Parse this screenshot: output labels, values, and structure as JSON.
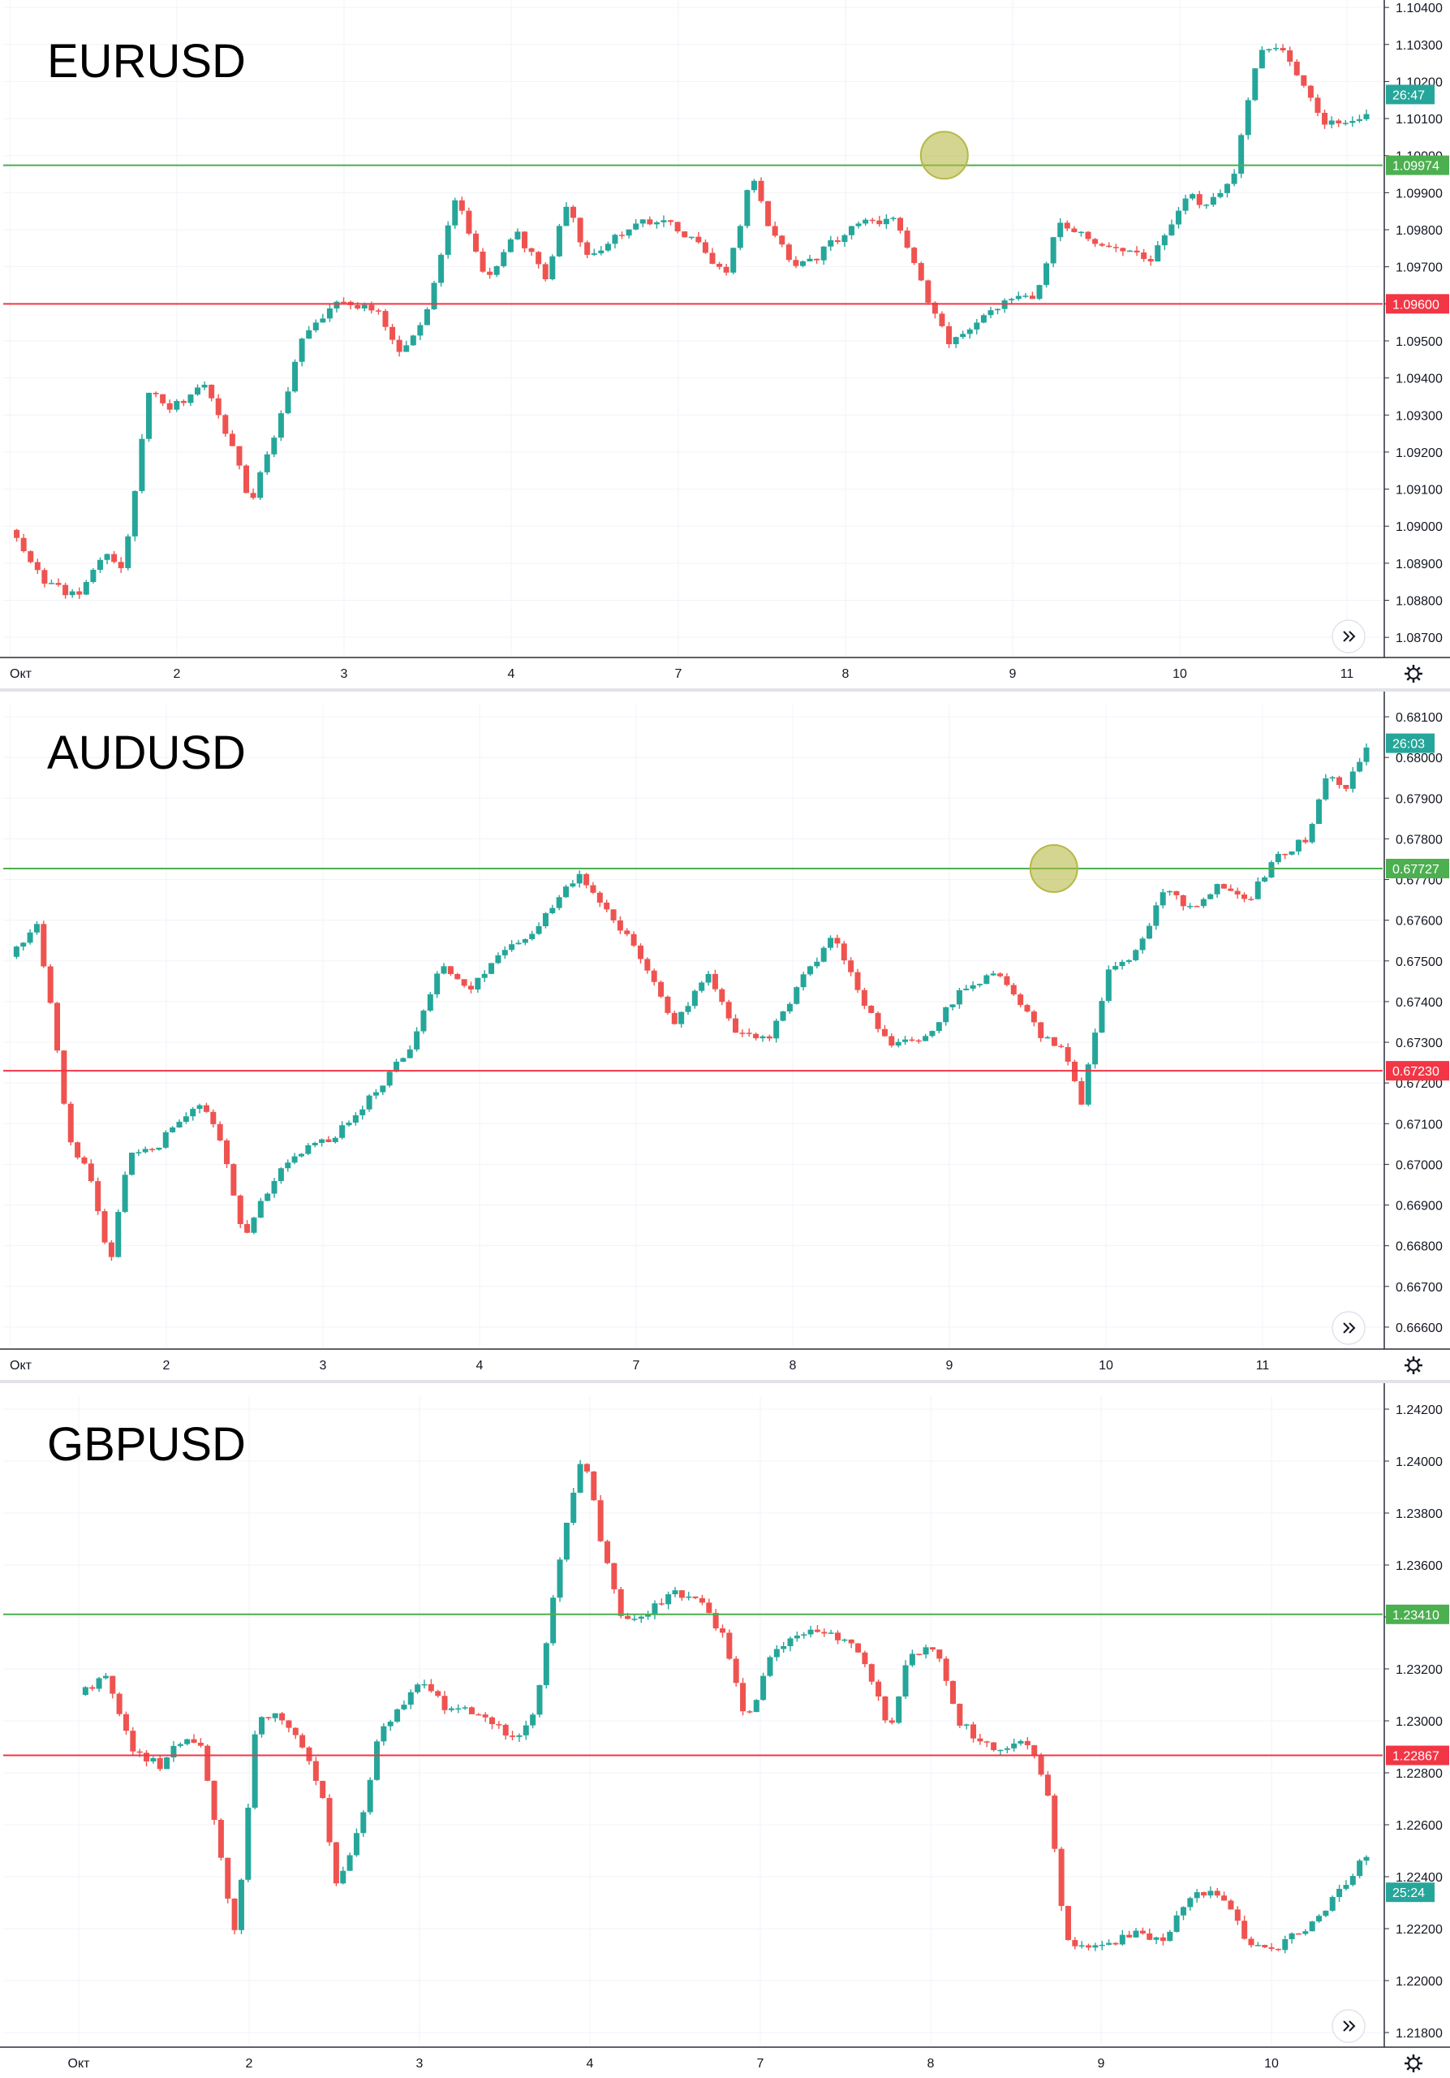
{
  "colors": {
    "up": "#26a69a",
    "down": "#ef5350",
    "resistance": "#4caf50",
    "support": "#f23645",
    "countdown": "#26a69a",
    "highlight": "#b5b946",
    "grid": "#f0f3fa",
    "axis_text": "#131722"
  },
  "icons": {
    "scroll": "double-chevron-right-icon",
    "settings": "gear-icon"
  },
  "chart_data": [
    {
      "type": "candlestick",
      "title": "EURUSD",
      "x_ticks": [
        "Окт",
        "2",
        "3",
        "4",
        "7",
        "8",
        "9",
        "10",
        "11"
      ],
      "y_ticks": [
        "1.10400",
        "1.10300",
        "1.10200",
        "1.10100",
        "1.10000",
        "1.09900",
        "1.09800",
        "1.09700",
        "1.09600",
        "1.09500",
        "1.09400",
        "1.09300",
        "1.09200",
        "1.09100",
        "1.09000",
        "1.08900",
        "1.08800",
        "1.08700"
      ],
      "ylim": [
        1.0865,
        1.1042
      ],
      "lines": [
        {
          "kind": "resistance",
          "value": 1.09974,
          "label": "1.09974"
        },
        {
          "kind": "support",
          "value": 1.096,
          "label": "1.09600"
        }
      ],
      "countdown": "26:47",
      "countdown_price": 1.10165,
      "marker": {
        "x_day": 7.75,
        "price": 1.10001
      },
      "close_path": [
        [
          0,
          1.0899
        ],
        [
          0.3,
          1.0885
        ],
        [
          0.55,
          1.0881
        ],
        [
          0.8,
          1.0893
        ],
        [
          0.95,
          1.0889
        ],
        [
          1.15,
          1.0937
        ],
        [
          1.35,
          1.0932
        ],
        [
          1.6,
          1.0938
        ],
        [
          1.85,
          1.0922
        ],
        [
          2.0,
          1.0906
        ],
        [
          2.25,
          1.093
        ],
        [
          2.45,
          1.0953
        ],
        [
          2.75,
          1.0961
        ],
        [
          3.05,
          1.0958
        ],
        [
          3.25,
          1.0945
        ],
        [
          3.5,
          1.0962
        ],
        [
          3.7,
          1.0989
        ],
        [
          3.95,
          1.0966
        ],
        [
          4.2,
          1.0979
        ],
        [
          4.45,
          1.0967
        ],
        [
          4.6,
          1.0988
        ],
        [
          4.8,
          1.0972
        ],
        [
          5.15,
          1.0981
        ],
        [
          5.45,
          1.0983
        ],
        [
          5.7,
          1.0976
        ],
        [
          5.95,
          1.0967
        ],
        [
          6.15,
          1.0995
        ],
        [
          6.3,
          1.0981
        ],
        [
          6.5,
          1.0971
        ],
        [
          6.7,
          1.0973
        ],
        [
          7.05,
          1.0983
        ],
        [
          7.35,
          1.0982
        ],
        [
          7.6,
          1.0962
        ],
        [
          7.8,
          1.0949
        ],
        [
          8.05,
          1.0955
        ],
        [
          8.3,
          1.0962
        ],
        [
          8.5,
          1.0962
        ],
        [
          8.7,
          1.0982
        ],
        [
          9.0,
          1.0977
        ],
        [
          9.25,
          1.0975
        ],
        [
          9.45,
          1.0971
        ],
        [
          9.75,
          1.0989
        ],
        [
          9.95,
          1.0987
        ],
        [
          10.15,
          1.0995
        ],
        [
          10.35,
          1.1027
        ],
        [
          10.5,
          1.103
        ],
        [
          10.75,
          1.1018
        ],
        [
          10.9,
          1.1009
        ],
        [
          11.1,
          1.101
        ],
        [
          11.25,
          1.1011
        ]
      ],
      "tick_pos": [
        0,
        1,
        2,
        3,
        4,
        5,
        6,
        7,
        8
      ],
      "xmax": 8.16,
      "n_candles": 195,
      "vol": 6e-05
    },
    {
      "type": "candlestick",
      "title": "AUDUSD",
      "x_ticks": [
        "Окт",
        "2",
        "3",
        "4",
        "7",
        "8",
        "9",
        "10",
        "11"
      ],
      "y_ticks": [
        "0.68100",
        "0.68000",
        "0.67900",
        "0.67800",
        "0.67700",
        "0.67600",
        "0.67500",
        "0.67400",
        "0.67300",
        "0.67200",
        "0.67100",
        "0.67000",
        "0.66900",
        "0.66800",
        "0.66700",
        "0.66600"
      ],
      "ylim": [
        0.6655,
        0.6813
      ],
      "lines": [
        {
          "kind": "resistance",
          "value": 0.67727,
          "label": "0.67727"
        },
        {
          "kind": "support",
          "value": 0.6723,
          "label": "0.67230"
        }
      ],
      "countdown": "26:03",
      "countdown_price": 0.68035,
      "marker": {
        "x_day": 7.85,
        "price": 0.67727
      },
      "close_path": [
        [
          0,
          0.6751
        ],
        [
          0.2,
          0.6759
        ],
        [
          0.3,
          0.6741
        ],
        [
          0.45,
          0.6705
        ],
        [
          0.6,
          0.6698
        ],
        [
          0.75,
          0.6675
        ],
        [
          0.9,
          0.6703
        ],
        [
          1.1,
          0.6704
        ],
        [
          1.3,
          0.6712
        ],
        [
          1.45,
          0.6716
        ],
        [
          1.6,
          0.6705
        ],
        [
          1.75,
          0.6682
        ],
        [
          2.0,
          0.6697
        ],
        [
          2.2,
          0.6703
        ],
        [
          2.45,
          0.6707
        ],
        [
          2.75,
          0.6718
        ],
        [
          3.0,
          0.6728
        ],
        [
          3.25,
          0.675
        ],
        [
          3.45,
          0.6742
        ],
        [
          3.7,
          0.6753
        ],
        [
          3.9,
          0.6755
        ],
        [
          4.15,
          0.6767
        ],
        [
          4.3,
          0.6771
        ],
        [
          4.55,
          0.676
        ],
        [
          4.75,
          0.6751
        ],
        [
          5.0,
          0.6734
        ],
        [
          5.25,
          0.6747
        ],
        [
          5.45,
          0.6732
        ],
        [
          5.7,
          0.6731
        ],
        [
          5.95,
          0.6745
        ],
        [
          6.2,
          0.6756
        ],
        [
          6.4,
          0.6741
        ],
        [
          6.6,
          0.673
        ],
        [
          6.9,
          0.6731
        ],
        [
          7.15,
          0.6743
        ],
        [
          7.45,
          0.6747
        ],
        [
          7.75,
          0.6732
        ],
        [
          7.95,
          0.6727
        ],
        [
          8.05,
          0.6714
        ],
        [
          8.25,
          0.6747
        ],
        [
          8.45,
          0.6752
        ],
        [
          8.7,
          0.6768
        ],
        [
          8.9,
          0.6762
        ],
        [
          9.1,
          0.6769
        ],
        [
          9.3,
          0.6764
        ],
        [
          9.5,
          0.6775
        ],
        [
          9.75,
          0.678
        ],
        [
          9.9,
          0.6796
        ],
        [
          10.05,
          0.6793
        ],
        [
          10.2,
          0.6802
        ]
      ],
      "tick_pos": [
        0,
        1,
        2,
        3,
        4,
        5,
        6,
        7,
        8
      ],
      "xmax": 8.72,
      "n_candles": 200,
      "vol": 5e-05
    },
    {
      "type": "candlestick",
      "title": "GBPUSD",
      "x_ticks": [
        "Окт",
        "2",
        "3",
        "4",
        "7",
        "8",
        "9",
        "10"
      ],
      "y_ticks": [
        "1.24200",
        "1.24000",
        "1.23800",
        "1.23600",
        "1.23400",
        "1.23200",
        "1.23000",
        "1.22800",
        "1.22600",
        "1.22400",
        "1.22200",
        "1.22000",
        "1.21800"
      ],
      "ylim": [
        1.2175,
        1.2425
      ],
      "lines": [
        {
          "kind": "resistance",
          "value": 1.2341,
          "label": "1.23410"
        },
        {
          "kind": "support",
          "value": 1.22867,
          "label": "1.22867"
        }
      ],
      "countdown": "25:24",
      "countdown_price": 1.2234,
      "close_path": [
        [
          -0.4,
          1.231
        ],
        [
          -0.2,
          1.2318
        ],
        [
          0,
          1.2287
        ],
        [
          0.2,
          1.2283
        ],
        [
          0.35,
          1.2292
        ],
        [
          0.5,
          1.229
        ],
        [
          0.6,
          1.2262
        ],
        [
          0.75,
          1.2216
        ],
        [
          0.9,
          1.2298
        ],
        [
          1.05,
          1.2305
        ],
        [
          1.25,
          1.2289
        ],
        [
          1.4,
          1.2268
        ],
        [
          1.5,
          1.2235
        ],
        [
          1.7,
          1.2265
        ],
        [
          1.8,
          1.2295
        ],
        [
          2.1,
          1.2315
        ],
        [
          2.3,
          1.2305
        ],
        [
          2.6,
          1.2302
        ],
        [
          2.8,
          1.2292
        ],
        [
          2.95,
          1.2302
        ],
        [
          3.1,
          1.2355
        ],
        [
          3.3,
          1.2405
        ],
        [
          3.45,
          1.2365
        ],
        [
          3.6,
          1.2338
        ],
        [
          3.8,
          1.2343
        ],
        [
          3.95,
          1.235
        ],
        [
          4.15,
          1.2346
        ],
        [
          4.35,
          1.2331
        ],
        [
          4.5,
          1.2298
        ],
        [
          4.7,
          1.2329
        ],
        [
          4.9,
          1.2332
        ],
        [
          5.05,
          1.2335
        ],
        [
          5.25,
          1.233
        ],
        [
          5.4,
          1.232
        ],
        [
          5.55,
          1.2295
        ],
        [
          5.7,
          1.2327
        ],
        [
          5.9,
          1.2327
        ],
        [
          6.05,
          1.23
        ],
        [
          6.3,
          1.2289
        ],
        [
          6.55,
          1.2293
        ],
        [
          6.7,
          1.2275
        ],
        [
          6.85,
          1.2215
        ],
        [
          7.1,
          1.2212
        ],
        [
          7.35,
          1.2218
        ],
        [
          7.55,
          1.2216
        ],
        [
          7.8,
          1.2235
        ],
        [
          8.0,
          1.2231
        ],
        [
          8.2,
          1.2214
        ],
        [
          8.4,
          1.2213
        ],
        [
          8.65,
          1.2222
        ],
        [
          8.85,
          1.2235
        ],
        [
          9.05,
          1.2248
        ]
      ],
      "tick_pos": [
        -0.55,
        0.45,
        1.45,
        2.45,
        3.45,
        4.45,
        5.45,
        6.45
      ],
      "xmax": 7.37,
      "n_candles": 190,
      "vol": 9e-05
    }
  ]
}
